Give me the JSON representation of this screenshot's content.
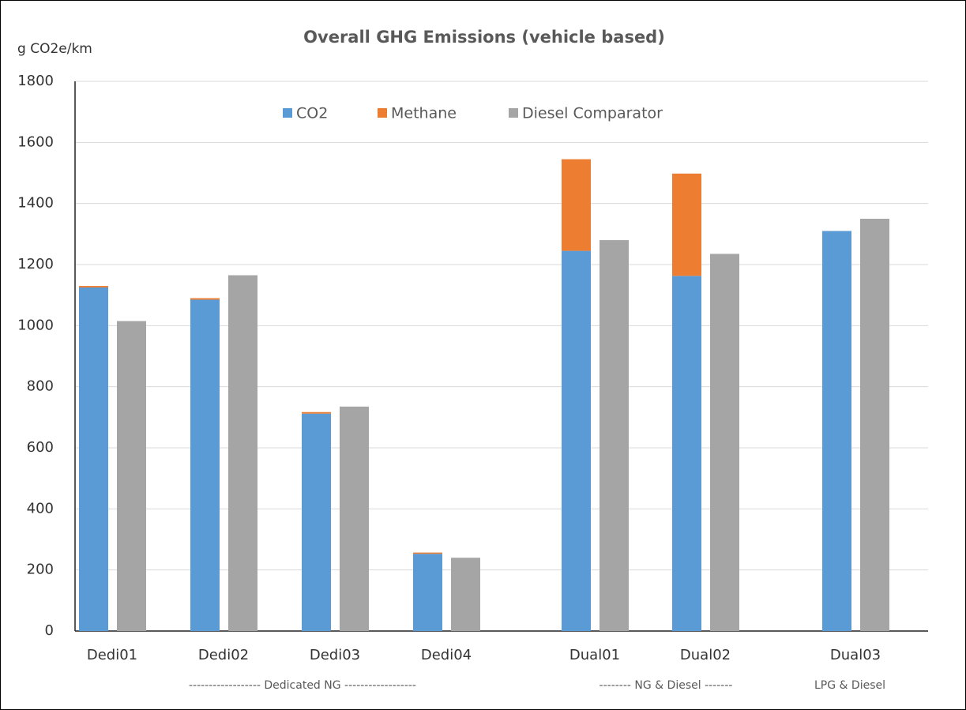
{
  "chart_data": {
    "type": "stacked_bar",
    "title": "Overall GHG Emissions (vehicle based)",
    "ylabel": "g CO2e/km",
    "categories": [
      "Dedi01",
      "Dedi02",
      "Dedi03",
      "Dedi04",
      "Dual01",
      "Dual02",
      "Dual03"
    ],
    "groups": [
      "------------------ Dedicated NG ------------------",
      "-------- NG & Diesel -------",
      "LPG & Diesel"
    ],
    "series": [
      {
        "name": "CO2",
        "color": "#5b9bd5",
        "stack": "a",
        "values": [
          1125,
          1085,
          712,
          253,
          1245,
          1163,
          1310
        ]
      },
      {
        "name": "Methane",
        "color": "#ed7d31",
        "stack": "a",
        "values": [
          5,
          5,
          5,
          4,
          300,
          335,
          0
        ]
      },
      {
        "name": "Diesel Comparator",
        "color": "#a5a5a5",
        "stack": "b",
        "values": [
          1015,
          1165,
          735,
          240,
          1280,
          1235,
          1350
        ]
      }
    ],
    "ylim": [
      0,
      1800
    ],
    "yticks": [
      0,
      200,
      400,
      600,
      800,
      1000,
      1200,
      1400,
      1600,
      1800
    ],
    "grid": true,
    "legend": "top"
  }
}
